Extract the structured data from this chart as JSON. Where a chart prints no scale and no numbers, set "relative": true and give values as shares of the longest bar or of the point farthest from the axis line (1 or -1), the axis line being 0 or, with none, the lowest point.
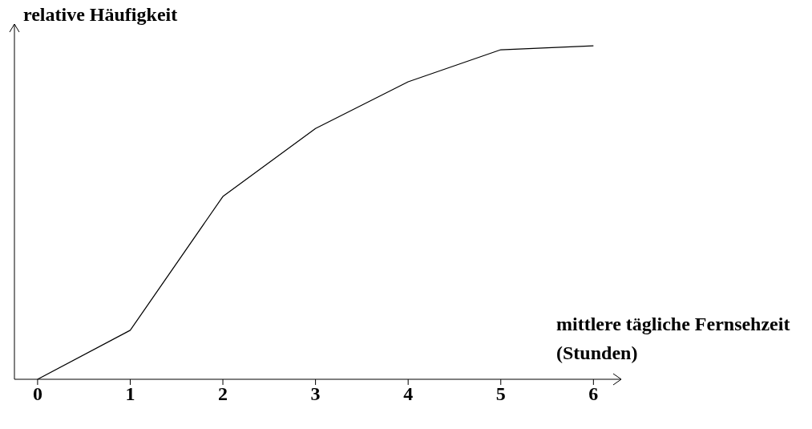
{
  "chart_data": {
    "type": "line",
    "relative": true,
    "xlabel": "mittlere tägliche Fernsehzeit (Stunden)",
    "ylabel": "relative Häufigkeit",
    "x": [
      0,
      1,
      2,
      3,
      4,
      5,
      6
    ],
    "series": [
      {
        "color": "#000000",
        "values": [
          0,
          0.147,
          0.548,
          0.752,
          0.892,
          0.988,
          1
        ]
      }
    ],
    "xlim": [
      -0.25,
      6.3
    ],
    "xticks": [
      0,
      1,
      2,
      3,
      4,
      5,
      6
    ],
    "grid": false,
    "legend": false,
    "marker": "none",
    "line_style": "solid"
  }
}
